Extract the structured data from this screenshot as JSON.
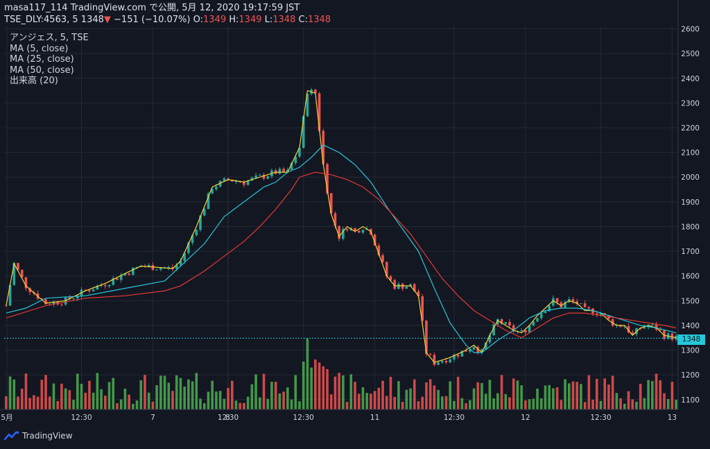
{
  "header": {
    "line1": "masa117_114 TradingView.com で公開, 5月 12, 2020 19:17:59 JST",
    "symbol": "TSE_DLY:4563, 5",
    "last": "1348",
    "change": "−151 (−10.07%)",
    "o_label": "O:",
    "o_value": "1349",
    "h_label": "H:",
    "h_value": "1349",
    "l_label": "L:",
    "l_value": "1348",
    "c_label": "C:",
    "c_value": "1348"
  },
  "legend": {
    "name": "アンジェス, 5, TSE",
    "ma5": "MA (5, close)",
    "ma25": "MA (25, close)",
    "ma50": "MA (50, close)",
    "volume": "出来高 (20)"
  },
  "price_tag": "1348",
  "footer": {
    "brand": "TradingView"
  },
  "colors": {
    "background": "#131722",
    "grid": "#242832",
    "up": "#26a69a",
    "down": "#ef5350",
    "vol_up": "#4caf50",
    "vol_down": "#ef5350",
    "ma5": "#f2d33a",
    "ma25": "#26c6da",
    "ma50": "#e53935",
    "text": "#d1d4dc"
  },
  "chart_data": {
    "type": "candlestick",
    "x_axis_labels": [
      "5月",
      "12:30",
      "7",
      "12:30",
      "8",
      "12:30",
      "11",
      "12:30",
      "12",
      "12:30",
      "13"
    ],
    "y_ticks": [
      1100,
      1200,
      1300,
      1400,
      1500,
      1600,
      1700,
      1800,
      1900,
      2000,
      2100,
      2200,
      2300,
      2400,
      2500,
      2600
    ],
    "ylim": [
      1060,
      2610
    ],
    "last_price": 1348,
    "series": [
      {
        "name": "MA (5, close)",
        "anchors": [
          [
            0,
            1480
          ],
          [
            2,
            1650
          ],
          [
            5,
            1560
          ],
          [
            10,
            1490
          ],
          [
            15,
            1500
          ],
          [
            20,
            1540
          ],
          [
            25,
            1570
          ],
          [
            30,
            1610
          ],
          [
            34,
            1640
          ],
          [
            42,
            1630
          ],
          [
            44,
            1660
          ],
          [
            48,
            1800
          ],
          [
            52,
            1960
          ],
          [
            56,
            1990
          ],
          [
            60,
            1980
          ],
          [
            64,
            2000
          ],
          [
            68,
            2020
          ],
          [
            71,
            2020
          ],
          [
            74,
            2120
          ],
          [
            76,
            2350
          ],
          [
            78,
            2340
          ],
          [
            80,
            2050
          ],
          [
            82,
            1850
          ],
          [
            84,
            1760
          ],
          [
            86,
            1800
          ],
          [
            88,
            1780
          ],
          [
            90,
            1800
          ],
          [
            92,
            1780
          ],
          [
            94,
            1690
          ],
          [
            96,
            1600
          ],
          [
            98,
            1560
          ],
          [
            102,
            1560
          ],
          [
            104,
            1520
          ],
          [
            106,
            1290
          ],
          [
            108,
            1250
          ],
          [
            112,
            1270
          ],
          [
            116,
            1300
          ],
          [
            118,
            1320
          ],
          [
            120,
            1290
          ],
          [
            122,
            1360
          ],
          [
            124,
            1420
          ],
          [
            126,
            1400
          ],
          [
            128,
            1380
          ],
          [
            130,
            1370
          ],
          [
            132,
            1400
          ],
          [
            134,
            1440
          ],
          [
            136,
            1470
          ],
          [
            138,
            1500
          ],
          [
            140,
            1480
          ],
          [
            142,
            1500
          ],
          [
            144,
            1490
          ],
          [
            146,
            1460
          ],
          [
            148,
            1460
          ],
          [
            150,
            1450
          ],
          [
            152,
            1420
          ],
          [
            154,
            1400
          ],
          [
            156,
            1400
          ],
          [
            158,
            1360
          ],
          [
            160,
            1390
          ],
          [
            162,
            1400
          ],
          [
            164,
            1390
          ],
          [
            166,
            1360
          ],
          [
            169,
            1350
          ]
        ]
      },
      {
        "name": "MA (25, close)",
        "anchors": [
          [
            0,
            1450
          ],
          [
            5,
            1470
          ],
          [
            10,
            1510
          ],
          [
            20,
            1520
          ],
          [
            30,
            1550
          ],
          [
            40,
            1580
          ],
          [
            44,
            1640
          ],
          [
            50,
            1730
          ],
          [
            55,
            1840
          ],
          [
            60,
            1900
          ],
          [
            65,
            1960
          ],
          [
            68,
            1980
          ],
          [
            71,
            2020
          ],
          [
            74,
            2040
          ],
          [
            77,
            2080
          ],
          [
            80,
            2130
          ],
          [
            84,
            2100
          ],
          [
            88,
            2050
          ],
          [
            92,
            1980
          ],
          [
            96,
            1880
          ],
          [
            100,
            1790
          ],
          [
            104,
            1700
          ],
          [
            108,
            1550
          ],
          [
            112,
            1410
          ],
          [
            116,
            1320
          ],
          [
            118,
            1290
          ],
          [
            120,
            1290
          ],
          [
            124,
            1340
          ],
          [
            128,
            1380
          ],
          [
            132,
            1430
          ],
          [
            136,
            1460
          ],
          [
            140,
            1470
          ],
          [
            144,
            1470
          ],
          [
            148,
            1460
          ],
          [
            152,
            1440
          ],
          [
            156,
            1420
          ],
          [
            160,
            1400
          ],
          [
            164,
            1390
          ],
          [
            169,
            1370
          ]
        ]
      },
      {
        "name": "MA (50, close)",
        "anchors": [
          [
            0,
            1430
          ],
          [
            10,
            1480
          ],
          [
            20,
            1510
          ],
          [
            30,
            1520
          ],
          [
            40,
            1540
          ],
          [
            44,
            1560
          ],
          [
            50,
            1620
          ],
          [
            55,
            1680
          ],
          [
            60,
            1740
          ],
          [
            64,
            1800
          ],
          [
            68,
            1870
          ],
          [
            72,
            1950
          ],
          [
            74,
            2000
          ],
          [
            78,
            2020
          ],
          [
            82,
            2010
          ],
          [
            86,
            1990
          ],
          [
            90,
            1960
          ],
          [
            94,
            1910
          ],
          [
            98,
            1840
          ],
          [
            102,
            1770
          ],
          [
            106,
            1680
          ],
          [
            110,
            1590
          ],
          [
            114,
            1520
          ],
          [
            118,
            1460
          ],
          [
            122,
            1420
          ],
          [
            126,
            1380
          ],
          [
            130,
            1350
          ],
          [
            134,
            1390
          ],
          [
            138,
            1430
          ],
          [
            142,
            1450
          ],
          [
            146,
            1450
          ],
          [
            150,
            1440
          ],
          [
            154,
            1430
          ],
          [
            158,
            1420
          ],
          [
            162,
            1410
          ],
          [
            166,
            1400
          ],
          [
            169,
            1390
          ]
        ]
      }
    ]
  }
}
